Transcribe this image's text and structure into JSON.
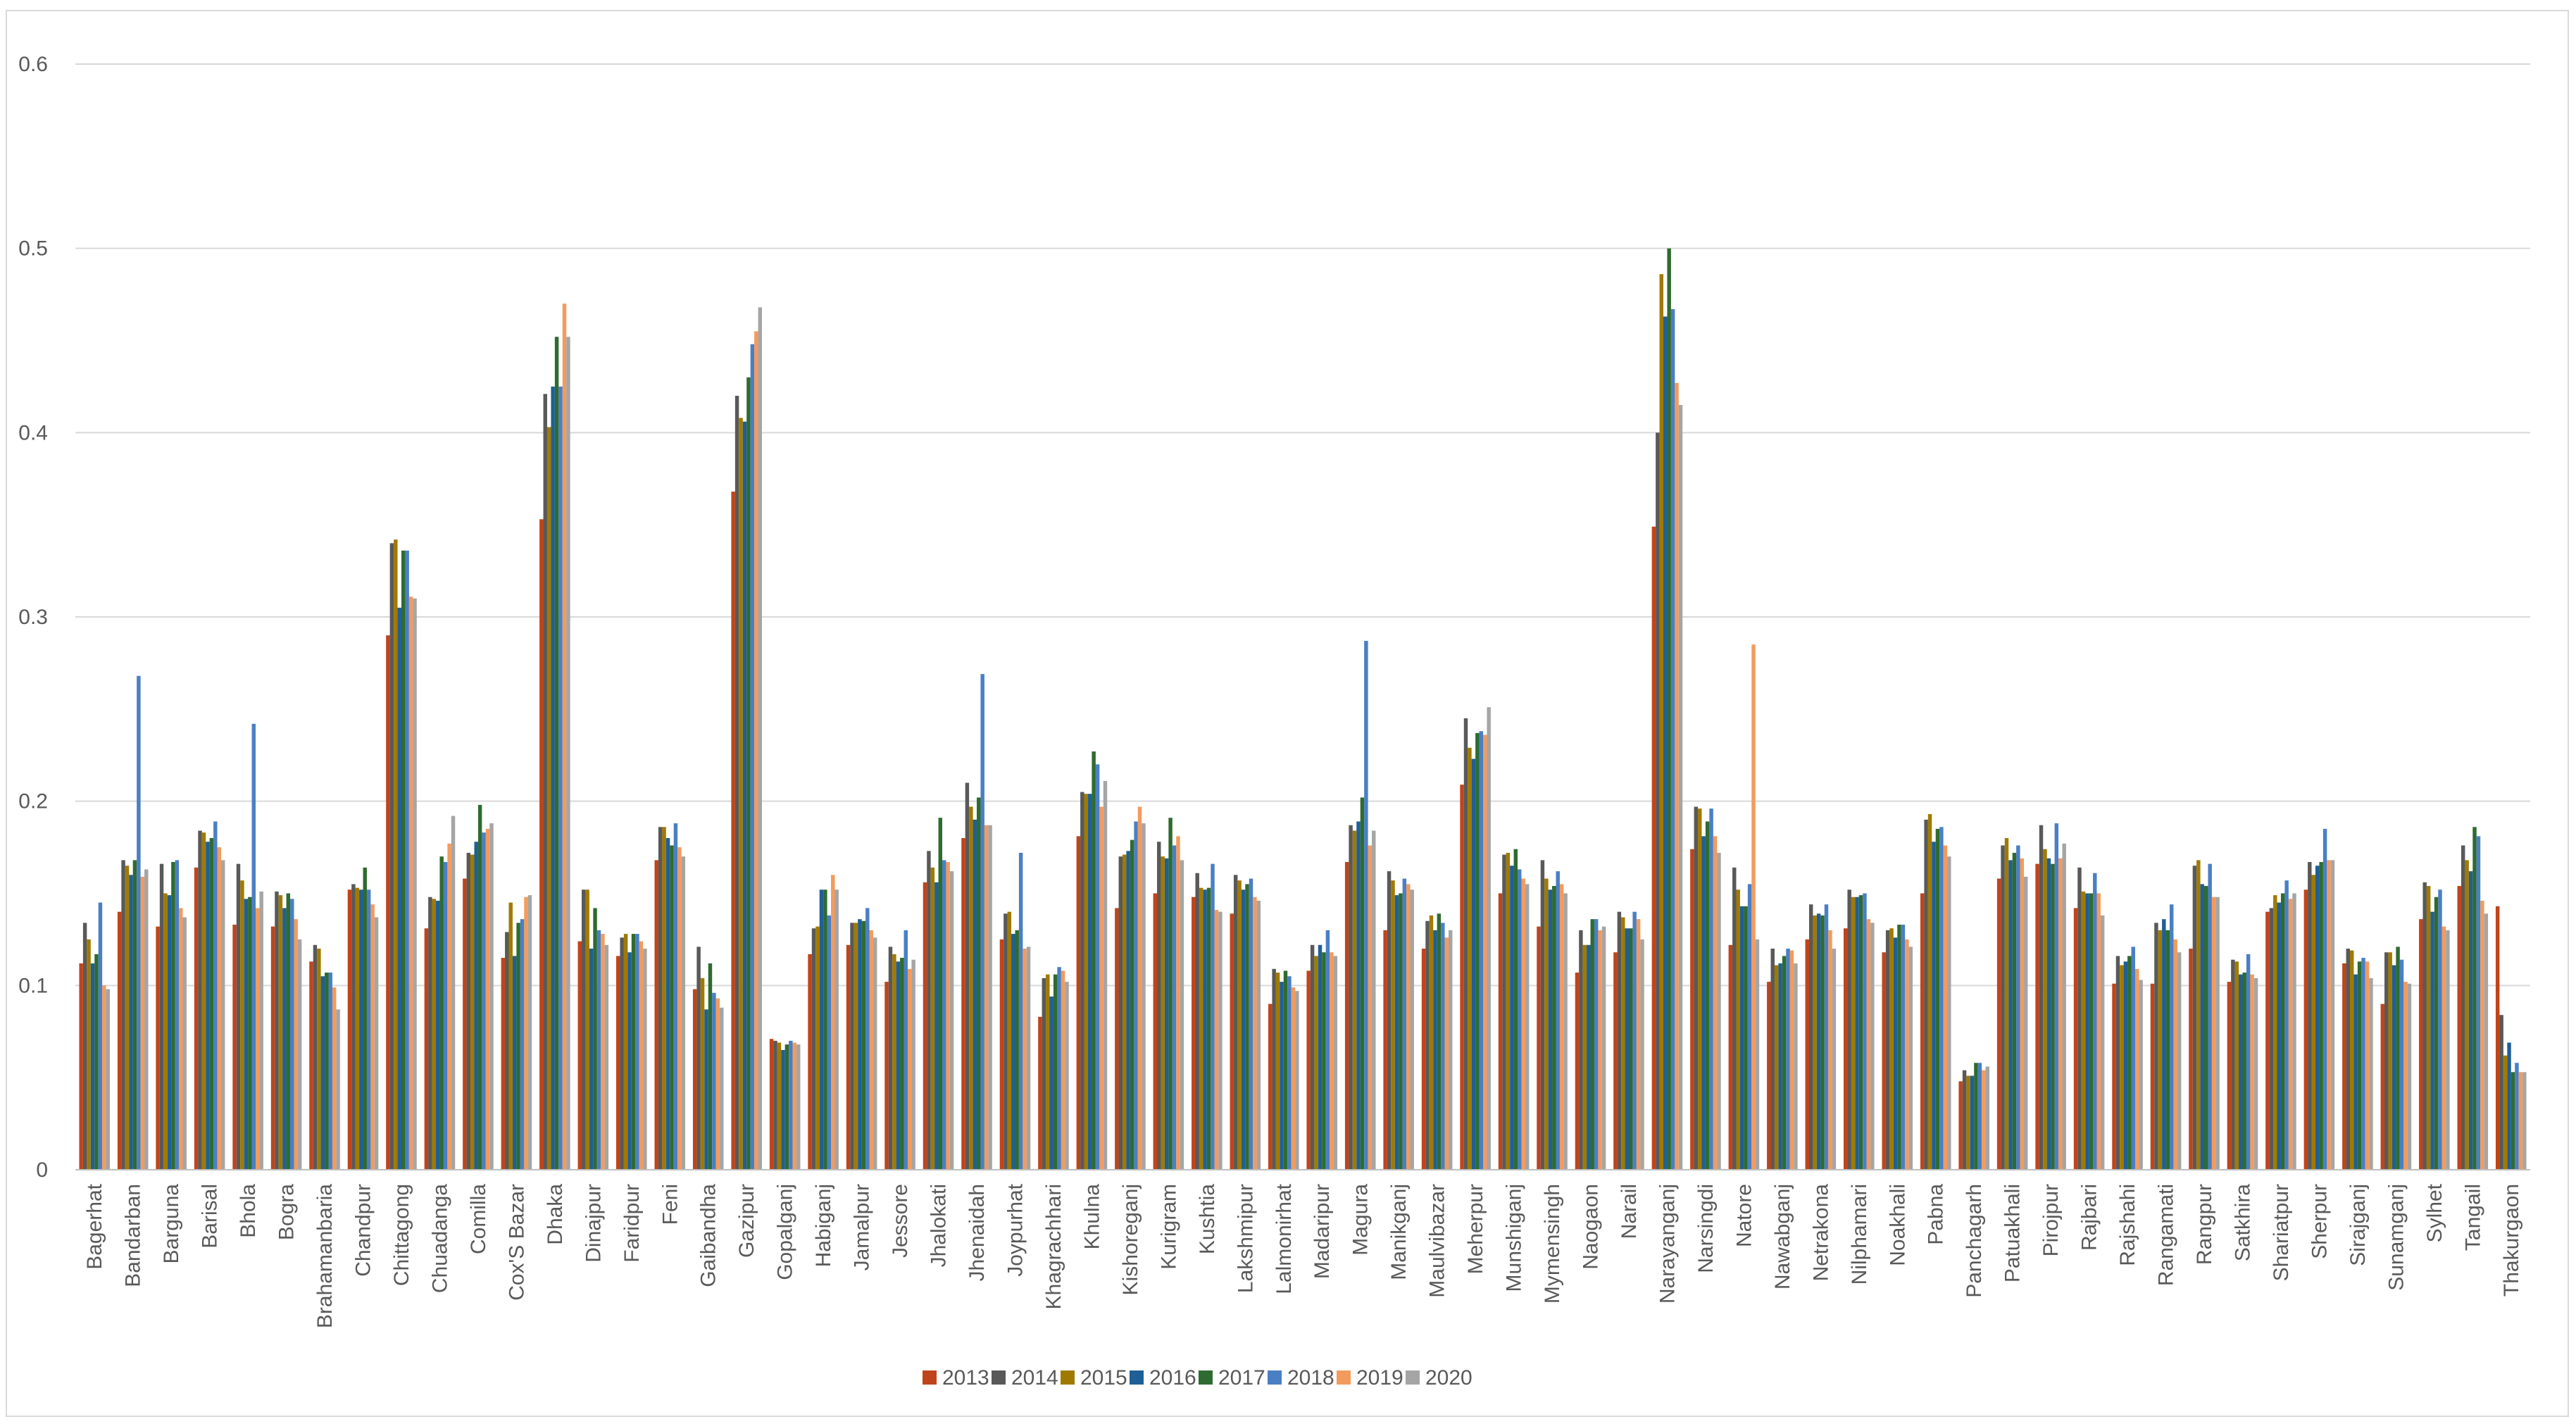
{
  "chart_data": {
    "type": "bar",
    "title": "",
    "xlabel": "",
    "ylabel": "",
    "ylim": [
      0,
      0.6
    ],
    "yticks": [
      "0",
      "0.1",
      "0.2",
      "0.3",
      "0.4",
      "0.5",
      "0.6"
    ],
    "grid": true,
    "legend_position": "bottom",
    "categories": [
      "Bagerhat",
      "Bandarban",
      "Barguna",
      "Barisal",
      "Bhola",
      "Bogra",
      "Brahamanbaria",
      "Chandpur",
      "Chittagong",
      "Chuadanga",
      "Comilla",
      "Cox'S Bazar",
      "Dhaka",
      "Dinajpur",
      "Faridpur",
      "Feni",
      "Gaibandha",
      "Gazipur",
      "Gopalganj",
      "Habiganj",
      "Jamalpur",
      "Jessore",
      "Jhalokati",
      "Jhenaidah",
      "Joypurhat",
      "Khagrachhari",
      "Khulna",
      "Kishoreganj",
      "Kurigram",
      "Kushtia",
      "Lakshmipur",
      "Lalmonirhat",
      "Madaripur",
      "Magura",
      "Manikganj",
      "Maulvibazar",
      "Meherpur",
      "Munshiganj",
      "Mymensingh",
      "Naogaon",
      "Narail",
      "Narayanganj",
      "Narsingdi",
      "Natore",
      "Nawabganj",
      "Netrakona",
      "Nilphamari",
      "Noakhali",
      "Pabna",
      "Panchagarh",
      "Patuakhali",
      "Pirojpur",
      "Rajbari",
      "Rajshahi",
      "Rangamati",
      "Rangpur",
      "Satkhira",
      "Shariatpur",
      "Sherpur",
      "Sirajganj",
      "Sunamganj",
      "Sylhet",
      "Tangail",
      "Thakurgaon"
    ],
    "series": [
      {
        "name": "2013",
        "color": "#c0441a",
        "values": [
          0.112,
          0.14,
          0.132,
          0.164,
          0.133,
          0.132,
          0.113,
          0.152,
          0.29,
          0.131,
          0.158,
          0.115,
          0.353,
          0.124,
          0.116,
          0.168,
          0.098,
          0.368,
          0.071,
          0.117,
          0.122,
          0.102,
          0.156,
          0.18,
          0.125,
          0.083,
          0.181,
          0.142,
          0.15,
          0.148,
          0.139,
          0.09,
          0.108,
          0.167,
          0.13,
          0.12,
          0.209,
          0.15,
          0.132,
          0.107,
          0.118,
          0.349,
          0.174,
          0.122,
          0.102,
          0.125,
          0.131,
          0.118,
          0.15,
          0.048,
          0.158,
          0.166,
          0.142,
          0.101,
          0.101,
          0.12,
          0.102,
          0.14,
          0.152,
          0.112,
          0.09,
          0.136,
          0.154,
          0.143
        ]
      },
      {
        "name": "2014",
        "color": "#595959",
        "values": [
          0.134,
          0.168,
          0.166,
          0.184,
          0.166,
          0.151,
          0.122,
          0.155,
          0.34,
          0.148,
          0.172,
          0.129,
          0.421,
          0.152,
          0.126,
          0.186,
          0.121,
          0.42,
          0.07,
          0.131,
          0.134,
          0.121,
          0.173,
          0.21,
          0.139,
          0.104,
          0.205,
          0.17,
          0.178,
          0.161,
          0.16,
          0.109,
          0.122,
          0.187,
          0.162,
          0.135,
          0.245,
          0.171,
          0.168,
          0.13,
          0.14,
          0.4,
          0.197,
          0.164,
          0.12,
          0.144,
          0.152,
          0.13,
          0.19,
          0.054,
          0.176,
          0.187,
          0.164,
          0.116,
          0.134,
          0.165,
          0.114,
          0.142,
          0.167,
          0.12,
          0.118,
          0.156,
          0.176,
          0.084
        ]
      },
      {
        "name": "2015",
        "color": "#a07a00",
        "values": [
          0.125,
          0.165,
          0.15,
          0.183,
          0.157,
          0.149,
          0.12,
          0.153,
          0.342,
          0.147,
          0.171,
          0.145,
          0.403,
          0.152,
          0.128,
          0.186,
          0.104,
          0.408,
          0.069,
          0.132,
          0.134,
          0.117,
          0.164,
          0.197,
          0.14,
          0.106,
          0.204,
          0.171,
          0.17,
          0.153,
          0.157,
          0.107,
          0.116,
          0.184,
          0.157,
          0.138,
          0.229,
          0.172,
          0.158,
          0.122,
          0.137,
          0.486,
          0.196,
          0.152,
          0.111,
          0.138,
          0.148,
          0.131,
          0.193,
          0.051,
          0.18,
          0.174,
          0.151,
          0.111,
          0.13,
          0.168,
          0.113,
          0.149,
          0.16,
          0.119,
          0.118,
          0.154,
          0.168,
          0.062
        ]
      },
      {
        "name": "2016",
        "color": "#1f5f96",
        "values": [
          0.112,
          0.16,
          0.149,
          0.178,
          0.147,
          0.142,
          0.105,
          0.152,
          0.305,
          0.146,
          0.178,
          0.116,
          0.425,
          0.12,
          0.118,
          0.18,
          0.087,
          0.406,
          0.065,
          0.152,
          0.136,
          0.113,
          0.156,
          0.19,
          0.128,
          0.094,
          0.204,
          0.173,
          0.169,
          0.152,
          0.152,
          0.102,
          0.122,
          0.189,
          0.149,
          0.13,
          0.223,
          0.165,
          0.152,
          0.122,
          0.131,
          0.463,
          0.181,
          0.143,
          0.112,
          0.139,
          0.148,
          0.126,
          0.178,
          0.051,
          0.168,
          0.169,
          0.15,
          0.113,
          0.136,
          0.155,
          0.106,
          0.145,
          0.165,
          0.106,
          0.111,
          0.14,
          0.162,
          0.069
        ]
      },
      {
        "name": "2017",
        "color": "#2e6b30",
        "values": [
          0.117,
          0.168,
          0.167,
          0.18,
          0.148,
          0.15,
          0.107,
          0.164,
          0.336,
          0.17,
          0.198,
          0.134,
          0.452,
          0.142,
          0.128,
          0.176,
          0.112,
          0.43,
          0.068,
          0.152,
          0.135,
          0.115,
          0.191,
          0.202,
          0.13,
          0.106,
          0.227,
          0.179,
          0.191,
          0.153,
          0.155,
          0.108,
          0.118,
          0.202,
          0.15,
          0.139,
          0.237,
          0.174,
          0.154,
          0.136,
          0.131,
          0.5,
          0.189,
          0.143,
          0.116,
          0.138,
          0.149,
          0.133,
          0.185,
          0.058,
          0.172,
          0.166,
          0.15,
          0.116,
          0.13,
          0.154,
          0.107,
          0.15,
          0.167,
          0.113,
          0.121,
          0.148,
          0.186,
          0.053
        ]
      },
      {
        "name": "2018",
        "color": "#4a7fc4",
        "values": [
          0.145,
          0.268,
          0.168,
          0.189,
          0.242,
          0.147,
          0.107,
          0.152,
          0.336,
          0.167,
          0.183,
          0.136,
          0.425,
          0.13,
          0.128,
          0.188,
          0.096,
          0.448,
          0.07,
          0.138,
          0.142,
          0.13,
          0.168,
          0.269,
          0.172,
          0.11,
          0.22,
          0.189,
          0.176,
          0.166,
          0.158,
          0.105,
          0.13,
          0.287,
          0.158,
          0.134,
          0.238,
          0.163,
          0.162,
          0.136,
          0.14,
          0.467,
          0.196,
          0.155,
          0.12,
          0.144,
          0.15,
          0.133,
          0.186,
          0.058,
          0.176,
          0.188,
          0.161,
          0.121,
          0.144,
          0.166,
          0.117,
          0.157,
          0.185,
          0.115,
          0.114,
          0.152,
          0.181,
          0.058
        ]
      },
      {
        "name": "2019",
        "color": "#f39b5d",
        "values": [
          0.1,
          0.159,
          0.142,
          0.175,
          0.142,
          0.136,
          0.099,
          0.144,
          0.311,
          0.177,
          0.185,
          0.148,
          0.47,
          0.128,
          0.124,
          0.175,
          0.093,
          0.455,
          0.069,
          0.16,
          0.13,
          0.109,
          0.167,
          0.187,
          0.12,
          0.108,
          0.197,
          0.197,
          0.181,
          0.141,
          0.148,
          0.099,
          0.118,
          0.176,
          0.155,
          0.126,
          0.236,
          0.158,
          0.155,
          0.13,
          0.136,
          0.427,
          0.181,
          0.285,
          0.119,
          0.13,
          0.136,
          0.125,
          0.176,
          0.054,
          0.169,
          0.169,
          0.15,
          0.109,
          0.125,
          0.148,
          0.106,
          0.147,
          0.168,
          0.113,
          0.102,
          0.132,
          0.146,
          0.053
        ]
      },
      {
        "name": "2020",
        "color": "#a5a5a5",
        "values": [
          0.098,
          0.163,
          0.137,
          0.168,
          0.151,
          0.125,
          0.087,
          0.137,
          0.31,
          0.192,
          0.188,
          0.149,
          0.452,
          0.122,
          0.12,
          0.17,
          0.088,
          0.468,
          0.068,
          0.152,
          0.126,
          0.114,
          0.162,
          0.187,
          0.121,
          0.102,
          0.211,
          0.188,
          0.168,
          0.14,
          0.146,
          0.097,
          0.116,
          0.184,
          0.152,
          0.13,
          0.251,
          0.155,
          0.15,
          0.132,
          0.125,
          0.415,
          0.172,
          0.125,
          0.112,
          0.12,
          0.134,
          0.121,
          0.17,
          0.056,
          0.159,
          0.177,
          0.138,
          0.103,
          0.118,
          0.148,
          0.104,
          0.15,
          0.168,
          0.104,
          0.101,
          0.13,
          0.139,
          0.053
        ]
      }
    ]
  }
}
